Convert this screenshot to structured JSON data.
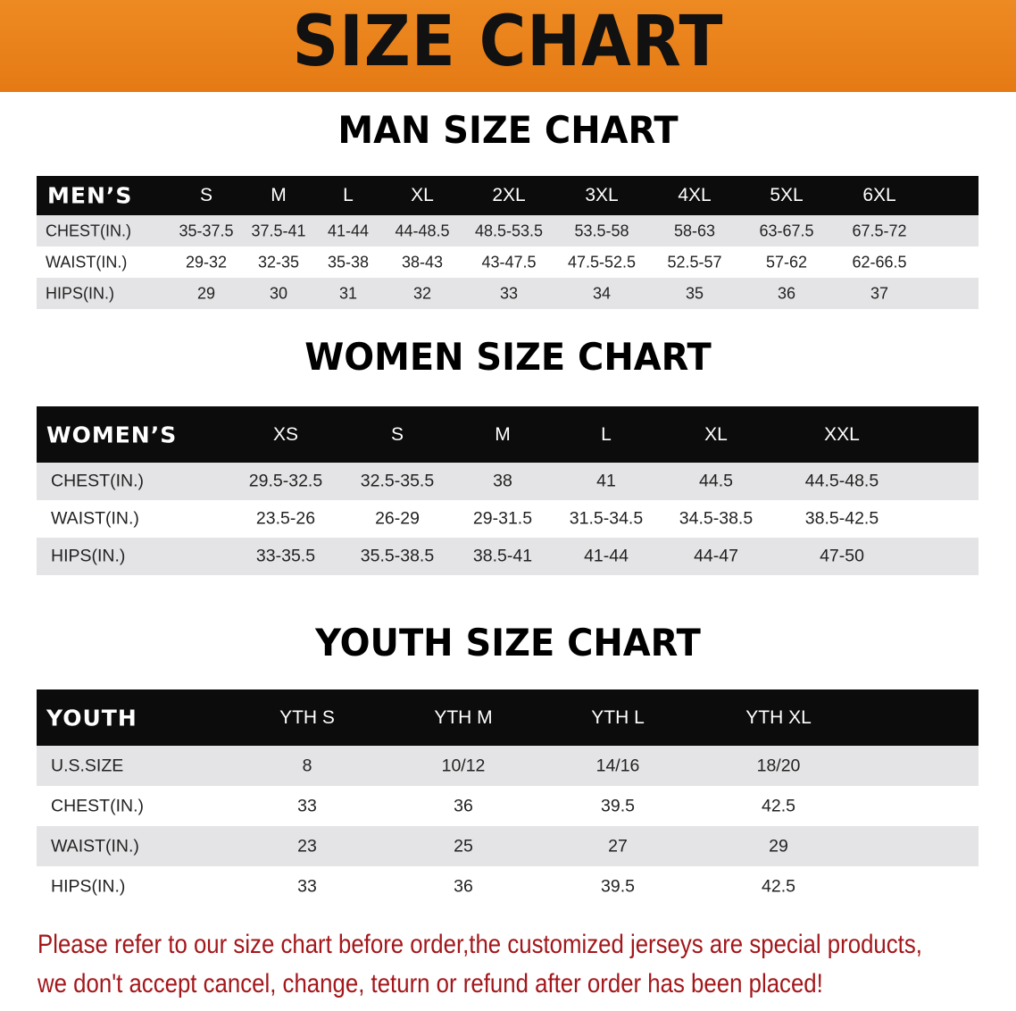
{
  "banner_title": "SIZE CHART",
  "colors": {
    "banner": "#e98318",
    "header_row": "#0c0c0c",
    "stripe": "#e4e4e6",
    "note": "#a3171b"
  },
  "men": {
    "title": "MAN SIZE CHART",
    "header": "MEN’S",
    "sizes": [
      "S",
      "M",
      "L",
      "XL",
      "2XL",
      "3XL",
      "4XL",
      "5XL",
      "6XL"
    ],
    "rows": [
      {
        "label": "CHEST(IN.)",
        "values": [
          "35-37.5",
          "37.5-41",
          "41-44",
          "44-48.5",
          "48.5-53.5",
          "53.5-58",
          "58-63",
          "63-67.5",
          "67.5-72"
        ]
      },
      {
        "label": "WAIST(IN.)",
        "values": [
          "29-32",
          "32-35",
          "35-38",
          "38-43",
          "43-47.5",
          "47.5-52.5",
          "52.5-57",
          "57-62",
          "62-66.5"
        ]
      },
      {
        "label": "HIPS(IN.)",
        "values": [
          "29",
          "30",
          "31",
          "32",
          "33",
          "34",
          "35",
          "36",
          "37"
        ]
      }
    ]
  },
  "women": {
    "title": "WOMEN SIZE CHART",
    "header": "WOMEN’S",
    "sizes": [
      "XS",
      "S",
      "M",
      "L",
      "XL",
      "XXL"
    ],
    "rows": [
      {
        "label": "CHEST(IN.)",
        "values": [
          "29.5-32.5",
          "32.5-35.5",
          "38",
          "41",
          "44.5",
          "44.5-48.5"
        ]
      },
      {
        "label": "WAIST(IN.)",
        "values": [
          "23.5-26",
          "26-29",
          "29-31.5",
          "31.5-34.5",
          "34.5-38.5",
          "38.5-42.5"
        ]
      },
      {
        "label": "HIPS(IN.)",
        "values": [
          "33-35.5",
          "35.5-38.5",
          "38.5-41",
          "41-44",
          "44-47",
          "47-50"
        ]
      }
    ]
  },
  "youth": {
    "title": "YOUTH SIZE CHART",
    "header": "YOUTH",
    "sizes": [
      "YTH S",
      "YTH M",
      "YTH L",
      "YTH XL"
    ],
    "rows": [
      {
        "label": "U.S.SIZE",
        "values": [
          "8",
          "10/12",
          "14/16",
          "18/20"
        ]
      },
      {
        "label": "CHEST(IN.)",
        "values": [
          "33",
          "36",
          "39.5",
          "42.5"
        ]
      },
      {
        "label": "WAIST(IN.)",
        "values": [
          "23",
          "25",
          "27",
          "29"
        ]
      },
      {
        "label": "HIPS(IN.)",
        "values": [
          "33",
          "36",
          "39.5",
          "42.5"
        ]
      }
    ]
  },
  "note": {
    "line1": "Please refer to our size chart before order,the customized jerseys are special products,",
    "line2": "we don't accept cancel, change, teturn or refund after order has been placed!"
  }
}
